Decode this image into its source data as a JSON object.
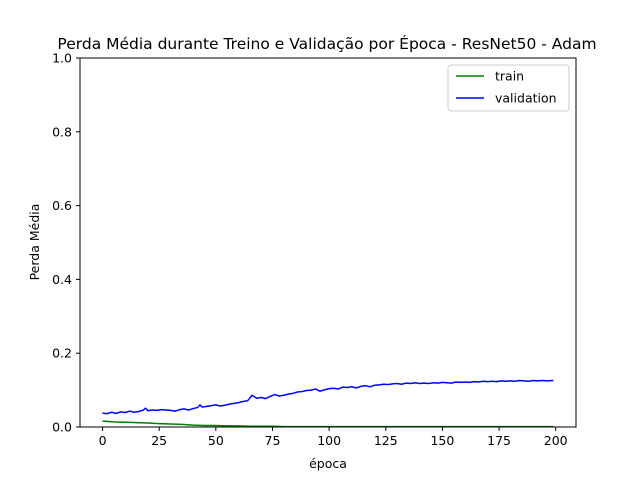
{
  "chart_data": {
    "type": "line",
    "title": "Perda Média durante Treino e Validação por Época - ResNet50 - Adam",
    "xlabel": "época",
    "ylabel": "Perda Média",
    "xlim": [
      -9.95,
      208.95
    ],
    "ylim": [
      0,
      1
    ],
    "xticks": [
      0,
      25,
      50,
      75,
      100,
      125,
      150,
      175,
      200
    ],
    "yticks": [
      0.0,
      0.2,
      0.4,
      0.6,
      0.8,
      1.0
    ],
    "xtick_labels": [
      "0",
      "25",
      "50",
      "75",
      "100",
      "125",
      "150",
      "175",
      "200"
    ],
    "ytick_labels": [
      "0.0",
      "0.2",
      "0.4",
      "0.6",
      "0.8",
      "1.0"
    ],
    "grid": false,
    "legend_position": "top-right",
    "series": [
      {
        "name": "train",
        "color": "#008000",
        "x": [
          0,
          5,
          10,
          15,
          20,
          25,
          30,
          35,
          40,
          45,
          50,
          55,
          60,
          65,
          70,
          75,
          80,
          90,
          100,
          120,
          140,
          160,
          180,
          199
        ],
        "y": [
          0.016,
          0.014,
          0.013,
          0.012,
          0.011,
          0.009,
          0.008,
          0.007,
          0.005,
          0.004,
          0.004,
          0.003,
          0.003,
          0.002,
          0.002,
          0.002,
          0.001,
          0.001,
          0.001,
          0.001,
          0.001,
          0.001,
          0.001,
          0.001
        ]
      },
      {
        "name": "validation",
        "color": "#0000ff",
        "x": [
          0,
          2,
          4,
          6,
          8,
          10,
          12,
          14,
          16,
          18,
          19,
          20,
          22,
          24,
          26,
          28,
          30,
          32,
          34,
          36,
          38,
          40,
          42,
          43,
          44,
          46,
          48,
          50,
          52,
          54,
          56,
          58,
          60,
          62,
          64,
          66,
          68,
          70,
          72,
          74,
          76,
          78,
          80,
          82,
          84,
          86,
          88,
          90,
          92,
          94,
          96,
          98,
          100,
          102,
          104,
          106,
          108,
          110,
          112,
          114,
          116,
          118,
          120,
          122,
          124,
          126,
          128,
          130,
          132,
          134,
          136,
          138,
          140,
          142,
          144,
          146,
          148,
          150,
          152,
          154,
          156,
          158,
          160,
          162,
          164,
          166,
          168,
          170,
          172,
          174,
          176,
          178,
          180,
          182,
          184,
          186,
          188,
          190,
          192,
          194,
          196,
          199
        ],
        "y": [
          0.038,
          0.036,
          0.04,
          0.037,
          0.041,
          0.039,
          0.043,
          0.04,
          0.042,
          0.046,
          0.051,
          0.044,
          0.046,
          0.045,
          0.047,
          0.046,
          0.045,
          0.043,
          0.047,
          0.049,
          0.046,
          0.05,
          0.053,
          0.06,
          0.054,
          0.056,
          0.058,
          0.06,
          0.057,
          0.059,
          0.062,
          0.064,
          0.066,
          0.069,
          0.071,
          0.086,
          0.078,
          0.08,
          0.077,
          0.083,
          0.088,
          0.084,
          0.086,
          0.089,
          0.091,
          0.095,
          0.096,
          0.099,
          0.1,
          0.103,
          0.097,
          0.101,
          0.104,
          0.105,
          0.103,
          0.108,
          0.107,
          0.109,
          0.106,
          0.11,
          0.112,
          0.109,
          0.113,
          0.114,
          0.116,
          0.115,
          0.117,
          0.118,
          0.116,
          0.119,
          0.118,
          0.12,
          0.118,
          0.119,
          0.118,
          0.12,
          0.119,
          0.121,
          0.12,
          0.119,
          0.122,
          0.121,
          0.122,
          0.121,
          0.123,
          0.122,
          0.124,
          0.123,
          0.124,
          0.123,
          0.125,
          0.124,
          0.125,
          0.124,
          0.126,
          0.125,
          0.124,
          0.126,
          0.125,
          0.126,
          0.125,
          0.126
        ]
      }
    ]
  }
}
